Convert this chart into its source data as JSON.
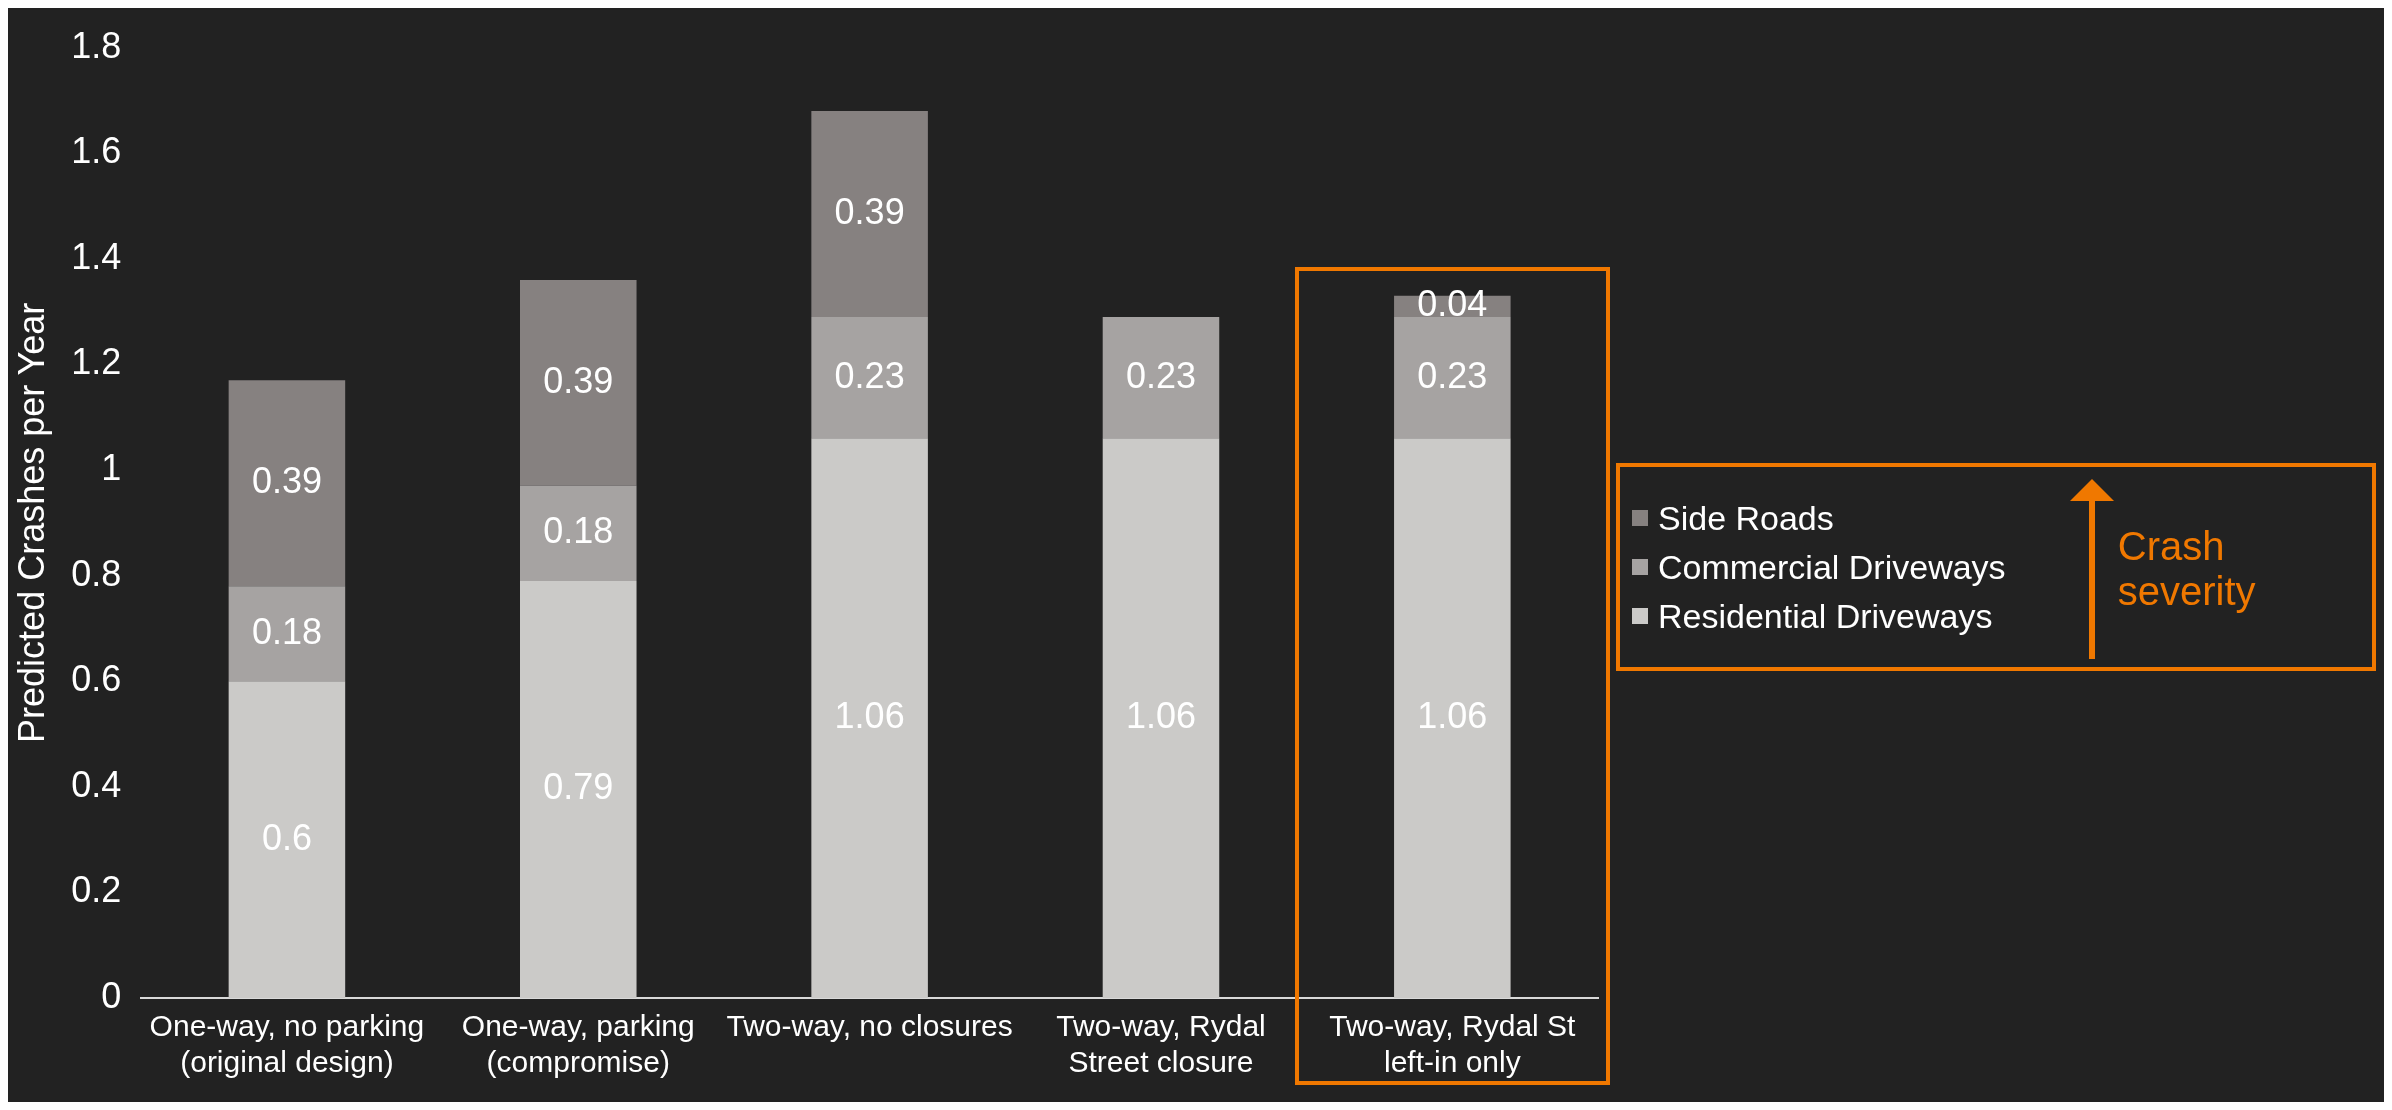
{
  "chart_data": {
    "type": "bar",
    "stacked": true,
    "ylabel": "Predicted Crashes per Year",
    "categories": [
      "One-way, no parking (original design)",
      "One-way, parking (compromise)",
      "Two-way, no closures",
      "Two-way, Rydal Street closure",
      "Two-way, Rydal St left-in only"
    ],
    "series": [
      {
        "name": "Residential Driveways",
        "color": "#cbcac8",
        "values": [
          0.6,
          0.79,
          1.06,
          1.06,
          1.06
        ]
      },
      {
        "name": "Commercial Driveways",
        "color": "#a6a3a2",
        "values": [
          0.18,
          0.18,
          0.23,
          0.23,
          0.23
        ]
      },
      {
        "name": "Side Roads",
        "color": "#868180",
        "values": [
          0.39,
          0.39,
          0.39,
          null,
          0.04
        ]
      }
    ],
    "ylim": [
      0,
      1.8
    ],
    "yticks": [
      0,
      0.2,
      0.4,
      0.6,
      0.8,
      1,
      1.2,
      1.4,
      1.6,
      1.8
    ],
    "grid": false,
    "data_labels": true,
    "legend": "right",
    "annotations": [
      "Crash severity"
    ]
  }
}
